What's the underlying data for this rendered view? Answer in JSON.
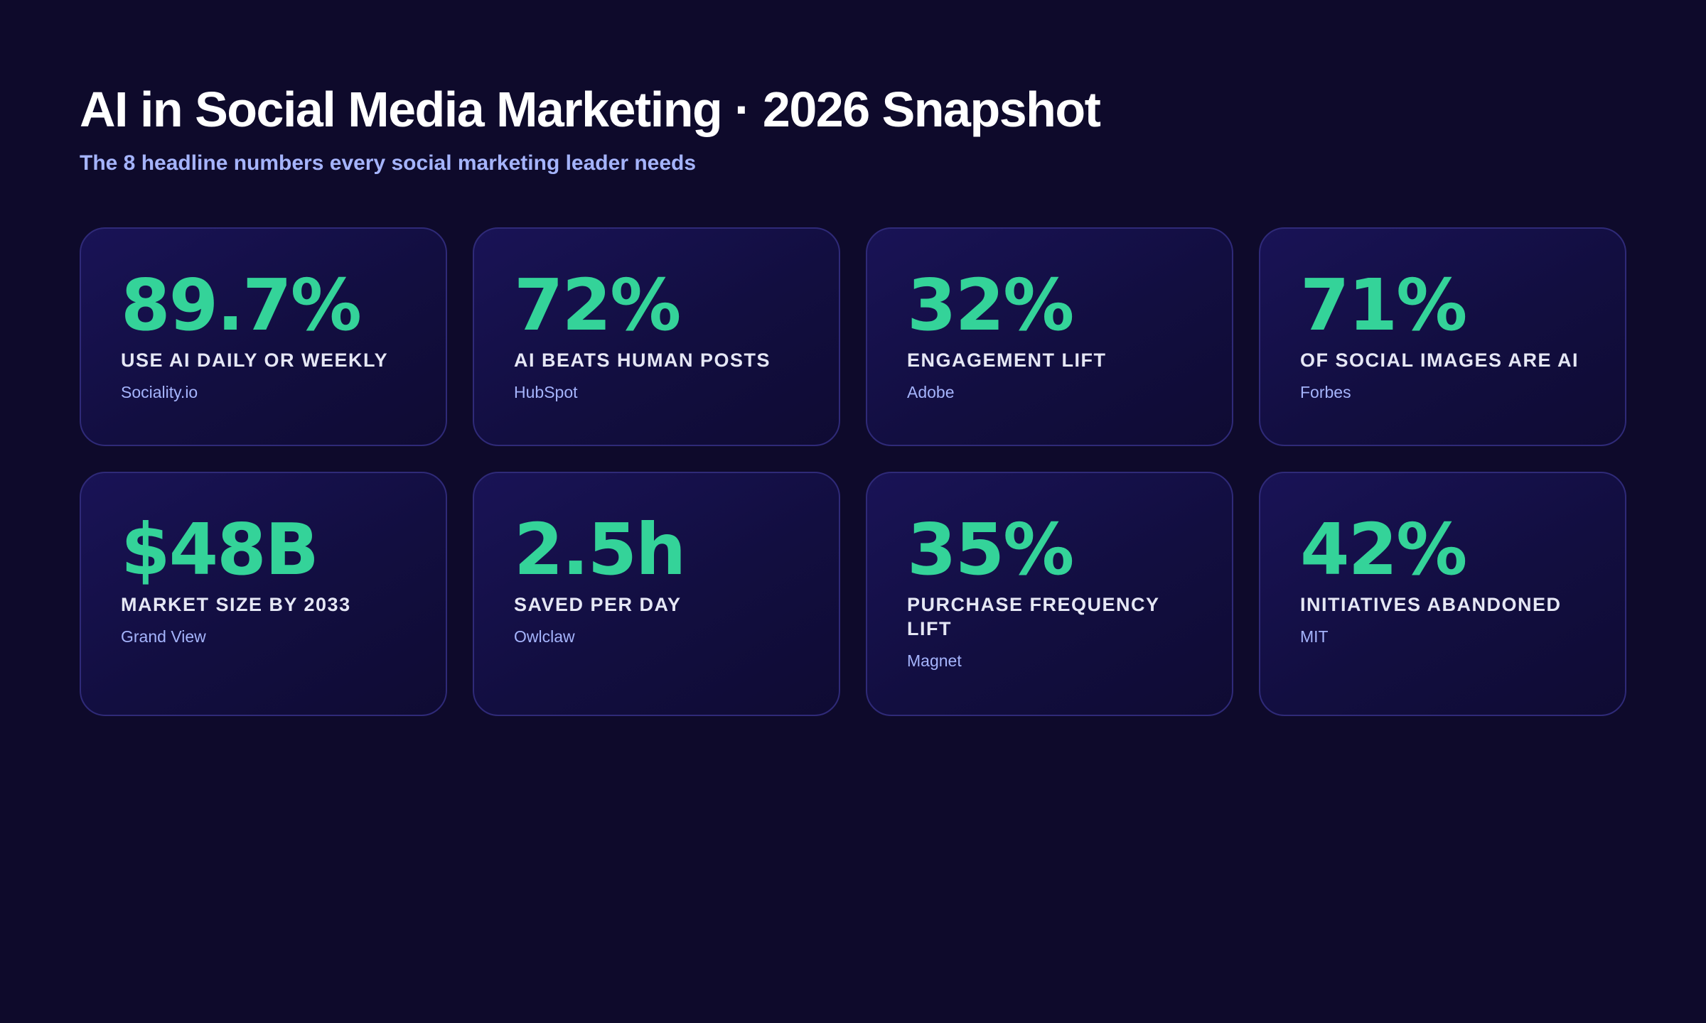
{
  "header": {
    "title": "AI in Social Media Marketing · 2026 Snapshot",
    "subtitle": "The 8 headline numbers every social marketing leader needs"
  },
  "colors": {
    "background": "#0e0a2b",
    "card_border": "#2f2a78",
    "value": "#34d399",
    "label": "#e5e7f5",
    "source": "#a5b4fc"
  },
  "stats": [
    {
      "value": "89.7%",
      "label": "USE AI DAILY OR WEEKLY",
      "source": "Sociality.io"
    },
    {
      "value": "72%",
      "label": "AI BEATS HUMAN POSTS",
      "source": "HubSpot"
    },
    {
      "value": "32%",
      "label": "ENGAGEMENT LIFT",
      "source": "Adobe"
    },
    {
      "value": "71%",
      "label": "OF SOCIAL IMAGES ARE AI",
      "source": "Forbes"
    },
    {
      "value": "$48B",
      "label": "MARKET SIZE BY 2033",
      "source": "Grand View"
    },
    {
      "value": "2.5h",
      "label": "SAVED PER DAY",
      "source": "Owlclaw"
    },
    {
      "value": "35%",
      "label": "PURCHASE FREQUENCY LIFT",
      "source": "Magnet"
    },
    {
      "value": "42%",
      "label": "INITIATIVES ABANDONED",
      "source": "MIT"
    }
  ]
}
